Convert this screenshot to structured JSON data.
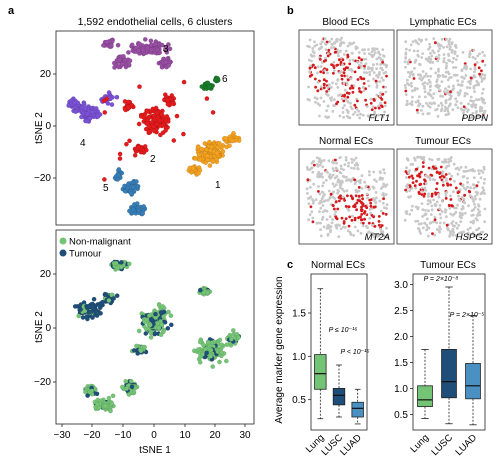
{
  "panel_a": {
    "label": "a",
    "title": "1,592 endothelial cells, 6 clusters",
    "ylabel": "tSNE 2",
    "yticks": [
      "20",
      "0",
      "−20"
    ],
    "cluster_labels": [
      "1",
      "2",
      "3",
      "4",
      "5",
      "6"
    ],
    "cluster_colors": {
      "1": "#f4a21f",
      "2": "#e41a1c",
      "3": "#984ea3",
      "4": "#7b52d6",
      "5": "#377eb8",
      "6": "#1b7d2b"
    }
  },
  "panel_a2": {
    "ylabel": "tSNE 2",
    "xlabel": "tSNE 1",
    "yticks": [
      "20",
      "0",
      "−20"
    ],
    "xticks": [
      "−30",
      "−20",
      "−10",
      "0",
      "10",
      "20",
      "30"
    ],
    "legend": [
      {
        "label": "Non-malignant",
        "color": "#74c476"
      },
      {
        "label": "Tumour",
        "color": "#1f4e79"
      }
    ]
  },
  "panel_b": {
    "label": "b",
    "subpanels": [
      {
        "title": "Blood ECs",
        "gene": "FLT1"
      },
      {
        "title": "Lymphatic ECs",
        "gene": "PDPN"
      },
      {
        "title": "Normal ECs",
        "gene": "MT2A"
      },
      {
        "title": "Tumour ECs",
        "gene": "HSPG2"
      }
    ]
  },
  "panel_c": {
    "label": "c",
    "ylabel": "Average marker gene expression",
    "chart_data": [
      {
        "type": "box",
        "title": "Normal ECs",
        "categories": [
          "Lung",
          "LUSC",
          "LUAD"
        ],
        "ylim": [
          0.15,
          1.95
        ],
        "yticks": [
          "0.5",
          "1.0",
          "1.5"
        ],
        "boxes": [
          {
            "category": "Lung",
            "color": "#74c476",
            "whisker_low": 0.28,
            "q1": 0.62,
            "median": 0.8,
            "q3": 1.02,
            "whisker_high": 1.78
          },
          {
            "category": "LUSC",
            "color": "#1f4e79",
            "whisker_low": 0.3,
            "q1": 0.44,
            "median": 0.55,
            "q3": 0.63,
            "whisker_high": 0.9
          },
          {
            "category": "LUAD",
            "color": "#4a90c2",
            "whisker_low": 0.22,
            "q1": 0.3,
            "median": 0.4,
            "q3": 0.47,
            "whisker_high": 0.62
          }
        ],
        "annotations": [
          {
            "text": "P ≤ 10⁻¹⁶",
            "between": [
              "Lung",
              "LUSC"
            ]
          },
          {
            "text": "P < 10⁻¹⁶",
            "between": [
              "LUSC",
              "LUAD"
            ]
          }
        ]
      },
      {
        "type": "box",
        "title": "Tumour ECs",
        "categories": [
          "Lung",
          "LUSC",
          "LUAD"
        ],
        "ylim": [
          0.2,
          3.2
        ],
        "yticks": [
          "0.5",
          "1.0",
          "1.5",
          "2.0",
          "2.5",
          "3.0"
        ],
        "boxes": [
          {
            "category": "Lung",
            "color": "#74c476",
            "whisker_low": 0.42,
            "q1": 0.65,
            "median": 0.78,
            "q3": 1.05,
            "whisker_high": 1.75
          },
          {
            "category": "LUSC",
            "color": "#1f4e79",
            "whisker_low": 0.32,
            "q1": 0.82,
            "median": 1.13,
            "q3": 1.75,
            "whisker_high": 2.95
          },
          {
            "category": "LUAD",
            "color": "#4a90c2",
            "whisker_low": 0.3,
            "q1": 0.8,
            "median": 1.05,
            "q3": 1.48,
            "whisker_high": 2.4
          }
        ],
        "annotations": [
          {
            "text": "P = 2×10⁻⁸",
            "between": [
              "Lung",
              "LUSC"
            ]
          },
          {
            "text": "P = 2×10⁻⁵",
            "between": [
              "Lung",
              "LUAD"
            ]
          }
        ]
      }
    ]
  }
}
